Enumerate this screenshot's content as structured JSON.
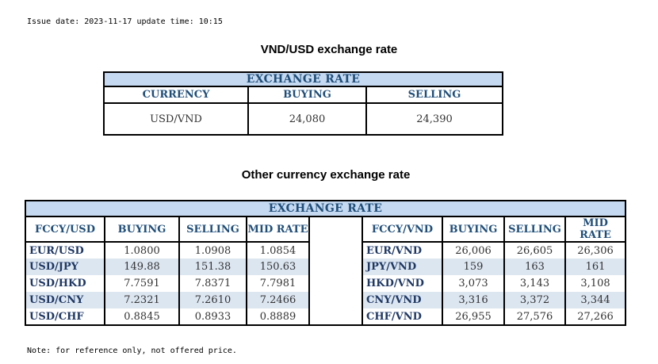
{
  "issue_line": "Issue date: 2023-11-17 update time: 10:15",
  "vnd_usd": {
    "title": "VND/USD exchange rate",
    "band": "EXCHANGE RATE",
    "headers": [
      "CURRENCY",
      "BUYING",
      "SELLING"
    ],
    "row": [
      "USD/VND",
      "24,080",
      "24,390"
    ]
  },
  "other": {
    "title": "Other currency exchange rate",
    "band": "EXCHANGE  RATE",
    "left_headers": [
      "FCCY/USD",
      "BUYING",
      "SELLING",
      "MID RATE"
    ],
    "right_headers": [
      "FCCY/VND",
      "BUYING",
      "SELLING",
      "MID RATE"
    ],
    "left_rows": [
      [
        "EUR/USD",
        "1.0800",
        "1.0908",
        "1.0854"
      ],
      [
        "USD/JPY",
        "149.88",
        "151.38",
        "150.63"
      ],
      [
        "USD/HKD",
        "7.7591",
        "7.8371",
        "7.7981"
      ],
      [
        "USD/CNY",
        "7.2321",
        "7.2610",
        "7.2466"
      ],
      [
        "USD/CHF",
        "0.8845",
        "0.8933",
        "0.8889"
      ]
    ],
    "right_rows": [
      [
        "EUR/VND",
        "26,006",
        "26,605",
        "26,306"
      ],
      [
        "JPY/VND",
        "159",
        "163",
        "161"
      ],
      [
        "HKD/VND",
        "3,073",
        "3,143",
        "3,108"
      ],
      [
        "CNY/VND",
        "3,316",
        "3,372",
        "3,344"
      ],
      [
        "CHF/VND",
        "26,955",
        "27,576",
        "27,266"
      ]
    ]
  },
  "note": "Note: for reference only, not offered price.",
  "colors": {
    "band": "#c5d9f1",
    "alt_row": "#dce6f1",
    "header_text": "#1f4e79"
  }
}
